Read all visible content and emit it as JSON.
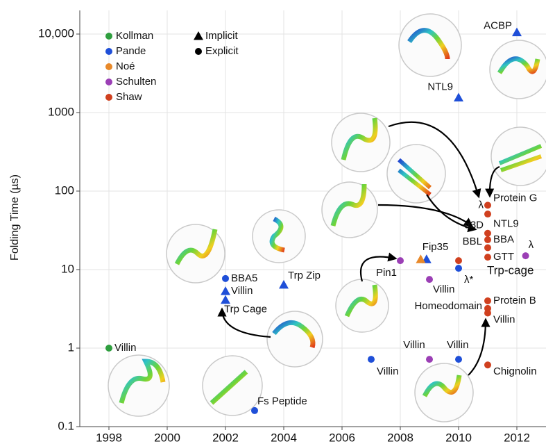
{
  "chart_data": {
    "type": "scatter",
    "y_label": "Folding Time (µs)",
    "xlim": [
      1997,
      2013
    ],
    "xticks": [
      1998,
      2000,
      2002,
      2004,
      2006,
      2008,
      2010,
      2012
    ],
    "ylim": [
      0.1,
      20000
    ],
    "yticks": [
      0.1,
      1,
      10,
      100,
      1000,
      {
        "value": 10000,
        "label": "10,000"
      }
    ],
    "y_scale": "log",
    "grid": true,
    "legend_position": "upper left",
    "marker_legend": [
      {
        "name": "Implicit",
        "marker": "triangle"
      },
      {
        "name": "Explicit",
        "marker": "circle"
      }
    ],
    "series": [
      {
        "name": "Kollman",
        "color": "#2e9e3e",
        "x": [
          1998
        ],
        "values": [
          1
        ],
        "markers": [
          "circle"
        ],
        "labels": [
          [
            "Villin"
          ]
        ]
      },
      {
        "name": "Pande",
        "color": "#1f4fd8",
        "x": [
          2002,
          2002,
          2002,
          2004,
          2003,
          2007,
          2010,
          2010,
          2012,
          2010,
          2008.9
        ],
        "values": [
          7.7,
          5.3,
          4.1,
          6.4,
          0.16,
          0.72,
          0.72,
          1550,
          10500,
          10.4,
          13.5
        ],
        "markers": [
          "circle",
          "triangle",
          "triangle",
          "triangle",
          "circle",
          "circle",
          "circle",
          "triangle",
          "triangle",
          "circle",
          "triangle"
        ],
        "labels": [
          [
            "BBA5"
          ],
          [
            "Villin"
          ],
          [
            "Trp Cage"
          ],
          [
            "Trp Zip"
          ],
          [
            "Fs Peptide"
          ],
          [
            "Villin"
          ],
          [
            "Villin"
          ],
          [
            "NTL9"
          ],
          [
            "ACBP"
          ],
          [
            "λ*"
          ],
          [
            "Fip35"
          ]
        ]
      },
      {
        "name": "Noé",
        "color": "#e8892a",
        "x": [
          2008.7
        ],
        "values": [
          13.5
        ],
        "markers": [
          "triangle"
        ],
        "labels": [
          []
        ]
      },
      {
        "name": "Schulten",
        "color": "#9b3fb5",
        "x": [
          2008,
          2009,
          2009,
          2012.3
        ],
        "values": [
          13,
          7.5,
          0.72,
          15
        ],
        "markers": [
          "circle",
          "circle",
          "circle",
          "circle"
        ],
        "labels": [
          [
            "Pin1"
          ],
          [
            "Villin"
          ],
          [
            "Villin"
          ],
          [
            "λ"
          ]
        ]
      },
      {
        "name": "Shaw",
        "color": "#d0401f",
        "x": [
          2011,
          2011,
          2011,
          2011,
          2011,
          2011,
          2010,
          2011,
          2011,
          2011,
          2011
        ],
        "values": [
          66,
          51,
          29,
          24,
          19,
          14.4,
          13,
          4,
          3.2,
          2.8,
          0.61
        ],
        "markers": [
          "circle",
          "circle",
          "circle",
          "circle",
          "circle",
          "circle",
          "circle",
          "circle",
          "circle",
          "circle",
          "circle"
        ],
        "labels": [
          [
            "λ",
            "Protein G"
          ],
          [],
          [
            "α3D",
            "NTL9"
          ],
          [
            "BBL",
            "BBA"
          ],
          [],
          [
            "GTT",
            "Trp-cage"
          ],
          [],
          [
            "Homeodomain",
            "Protein B"
          ],
          [],
          [
            "Villin"
          ],
          [
            "Chignolin"
          ]
        ]
      }
    ]
  }
}
